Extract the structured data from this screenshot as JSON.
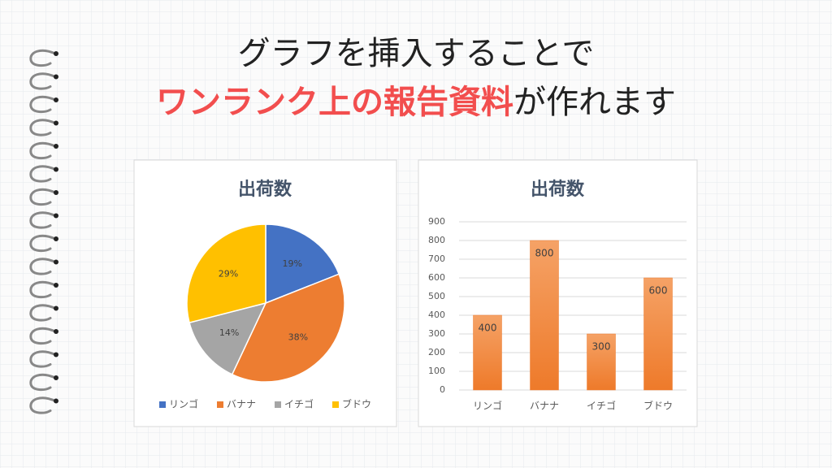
{
  "header": {
    "line1": "グラフを挿入することで",
    "line2_highlight": "ワンランク上の報告資料",
    "line2_rest": "が作れます"
  },
  "chart_data": [
    {
      "type": "pie",
      "title": "出荷数",
      "categories": [
        "リンゴ",
        "バナナ",
        "イチゴ",
        "ブドウ"
      ],
      "values": [
        19,
        38,
        14,
        29
      ],
      "value_labels": [
        "19%",
        "38%",
        "14%",
        "29%"
      ],
      "colors": [
        "#4472c4",
        "#ed7d31",
        "#a5a5a5",
        "#ffc000"
      ],
      "legend": "bottom"
    },
    {
      "type": "bar",
      "title": "出荷数",
      "categories": [
        "リンゴ",
        "バナナ",
        "イチゴ",
        "ブドウ"
      ],
      "values": [
        400,
        800,
        300,
        600
      ],
      "color": "#ed7d31",
      "ylim": [
        0,
        900
      ],
      "yticks": [
        0,
        100,
        200,
        300,
        400,
        500,
        600,
        700,
        800,
        900
      ],
      "grid": true
    }
  ]
}
